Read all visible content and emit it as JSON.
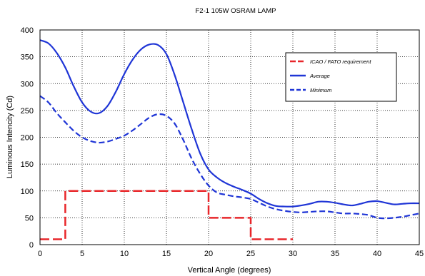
{
  "chart_data": {
    "type": "line",
    "title": "F2-1  105W  OSRAM LAMP",
    "xlabel": "Vertical Angle (degrees)",
    "ylabel": "Luminous Intencity (Cd)",
    "xlim": [
      0,
      45
    ],
    "ylim": [
      0,
      400
    ],
    "xticks": [
      0,
      5,
      10,
      15,
      20,
      25,
      30,
      35,
      40,
      45
    ],
    "yticks": [
      0,
      50,
      100,
      150,
      200,
      250,
      300,
      350,
      400
    ],
    "grid": "dotted",
    "legend_position": "top-right",
    "series": [
      {
        "name": "ICAO /  FATO requirement",
        "color": "#e8262a",
        "style": "dashed",
        "x": [
          0,
          3,
          3,
          20,
          20,
          25,
          25,
          30
        ],
        "y": [
          10,
          10,
          100,
          100,
          50,
          50,
          10,
          10
        ]
      },
      {
        "name": "Average",
        "color": "#1f35d6",
        "style": "solid",
        "x": [
          0,
          1,
          2,
          3,
          4,
          5,
          6,
          7,
          8,
          9,
          10,
          11,
          12,
          13,
          14,
          15,
          16,
          17,
          18,
          19,
          20,
          21,
          22,
          23,
          24,
          25,
          26,
          27,
          28,
          29,
          30,
          31,
          32,
          33,
          34,
          35,
          36,
          37,
          38,
          39,
          40,
          41,
          42,
          43,
          44,
          45
        ],
        "y": [
          381,
          375,
          357,
          330,
          295,
          265,
          248,
          245,
          258,
          285,
          318,
          345,
          364,
          373,
          372,
          355,
          315,
          265,
          215,
          170,
          140,
          125,
          115,
          108,
          102,
          95,
          85,
          77,
          72,
          71,
          71,
          73,
          76,
          80,
          80,
          78,
          75,
          73,
          76,
          80,
          81,
          78,
          75,
          76,
          77,
          77
        ]
      },
      {
        "name": "Minimum",
        "color": "#1f35d6",
        "style": "dashed",
        "x": [
          0,
          1,
          2,
          3,
          4,
          5,
          6,
          7,
          8,
          9,
          10,
          11,
          12,
          13,
          14,
          15,
          16,
          17,
          18,
          19,
          20,
          21,
          22,
          23,
          24,
          25,
          26,
          27,
          28,
          29,
          30,
          31,
          32,
          33,
          34,
          35,
          36,
          37,
          38,
          39,
          40,
          41,
          42,
          43,
          44,
          45
        ],
        "y": [
          277,
          265,
          245,
          228,
          212,
          200,
          193,
          190,
          192,
          197,
          203,
          213,
          225,
          237,
          243,
          240,
          225,
          195,
          160,
          132,
          110,
          97,
          93,
          90,
          88,
          85,
          78,
          71,
          66,
          63,
          61,
          60,
          61,
          62,
          62,
          60,
          58,
          58,
          57,
          55,
          50,
          49,
          50,
          52,
          55,
          58
        ]
      }
    ]
  }
}
